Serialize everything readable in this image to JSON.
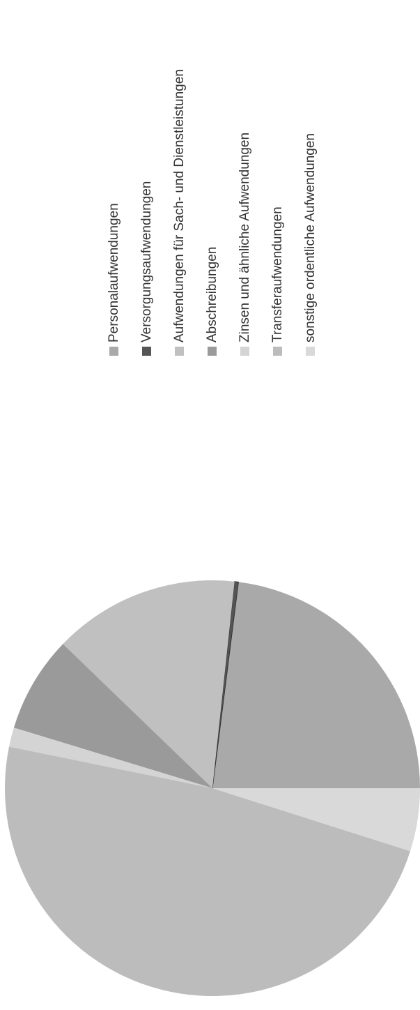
{
  "chart_data": {
    "type": "pie",
    "title": "",
    "legend_position": "right",
    "legend": [
      "Personalaufwendungen",
      "Versorgungsaufwendungen",
      "Aufwendungen für Sach- und Dienstleistungen",
      "Abschreibungen",
      "Zinsen und ähnliche Aufwendungen",
      "Transferaufwendungen",
      "sonstige ordentliche Aufwendungen"
    ],
    "values": [
      23.0,
      0.3,
      14.5,
      7.5,
      1.5,
      48.3,
      4.9
    ],
    "colors": [
      "#a9a9a9",
      "#555555",
      "#c0c0c0",
      "#9a9a9a",
      "#d4d4d4",
      "#bcbcbc",
      "#d9d9d9"
    ],
    "start_angle_deg": 0
  }
}
